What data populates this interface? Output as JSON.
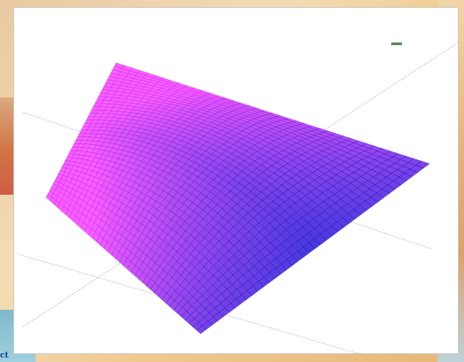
{
  "chart_data": {
    "type": "surface",
    "function": "z = x^2 - y^2",
    "x_range": [
      -1,
      1
    ],
    "y_range": [
      -1,
      1
    ],
    "grid_lines": 40,
    "colors": {
      "low": "#1010d0",
      "high": "#ff40ff"
    },
    "title": "",
    "xlabel": "",
    "ylabel": "",
    "zlabel": "",
    "legend": "top-right"
  },
  "legend": {
    "swatch_color": "#5a8a5a"
  },
  "corner_text": "ct"
}
